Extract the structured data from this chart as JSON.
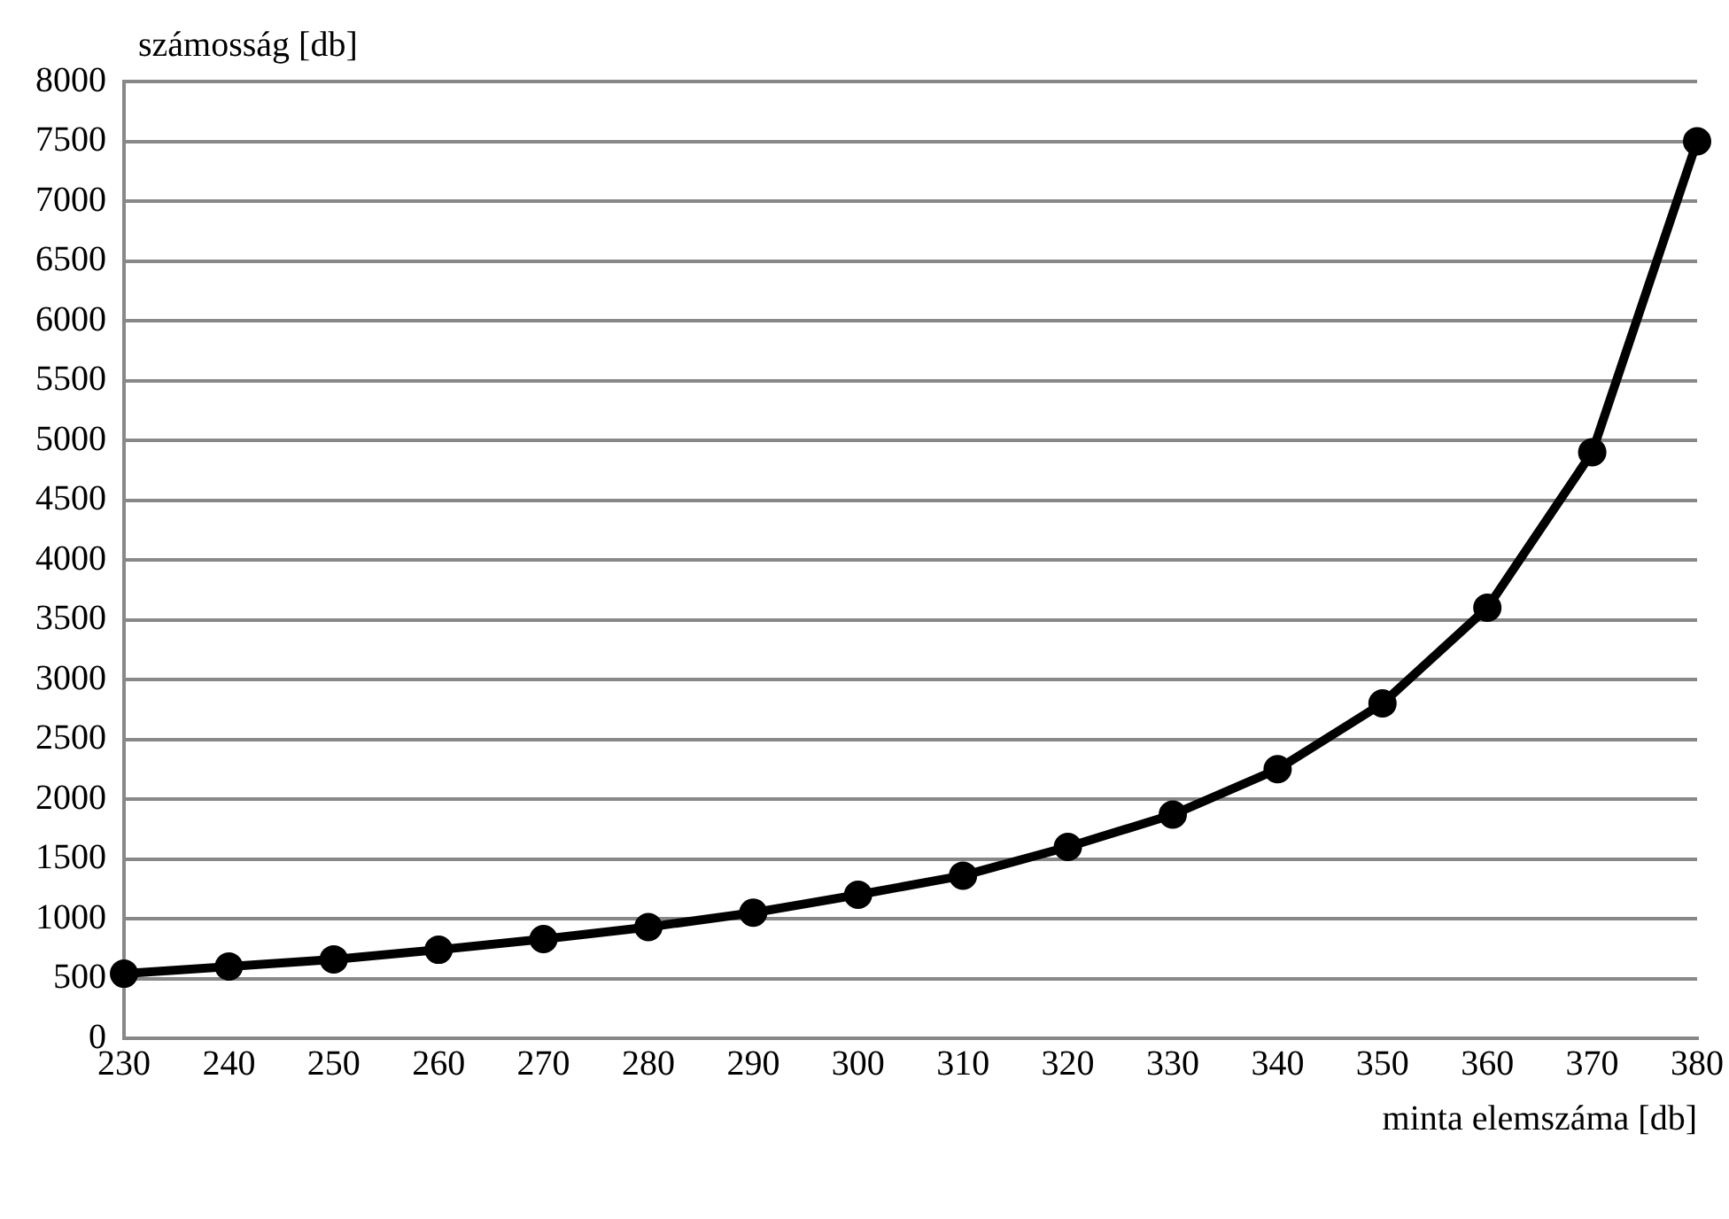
{
  "chart_data": {
    "type": "line",
    "xlabel": "minta elemszáma [db]",
    "ylabel": "számosság [db]",
    "x": [
      230,
      240,
      250,
      260,
      270,
      280,
      290,
      300,
      310,
      320,
      330,
      340,
      350,
      360,
      370,
      380
    ],
    "series": [
      {
        "color": "#000000",
        "values": [
          540,
          600,
          660,
          740,
          830,
          930,
          1050,
          1200,
          1360,
          1600,
          1870,
          2250,
          2800,
          3600,
          4900,
          7500
        ]
      }
    ],
    "xlim": [
      230,
      380
    ],
    "xticks": [
      230,
      240,
      250,
      260,
      270,
      280,
      290,
      300,
      310,
      320,
      330,
      340,
      350,
      360,
      370,
      380
    ],
    "ylim": [
      0,
      8000
    ],
    "yticks": [
      0,
      500,
      1000,
      1500,
      2000,
      2500,
      3000,
      3500,
      4000,
      4500,
      5000,
      5500,
      6000,
      6500,
      7000,
      7500,
      8000
    ],
    "grid": "y",
    "legend": false,
    "marker": "circle",
    "line_style": "solid"
  }
}
